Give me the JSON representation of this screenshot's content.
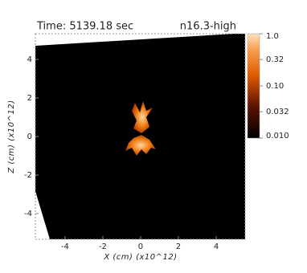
{
  "chart_data": {
    "type": "image",
    "title": "Time: 5139.18 sec",
    "subtitle": "n16.3-high",
    "x_label": "X (cm) (x10^12)",
    "y_label": "Z (cm) (x10^12)",
    "xlim": [
      -5.57,
      5.53
    ],
    "xticks": [
      -4,
      -2,
      0,
      2,
      4
    ],
    "ylim": [
      -5.33,
      5.33
    ],
    "yticks": [
      -4,
      -2,
      0,
      2,
      4
    ],
    "colorbar": {
      "log": true,
      "lim": [
        0.01,
        1
      ],
      "ticks": [
        {
          "value": 1,
          "label": "1.0"
        },
        0.32,
        {
          "value": 0.1,
          "label": "0.10"
        },
        0.032,
        {
          "value": 0.01,
          "label": "0.010"
        }
      ]
    }
  }
}
